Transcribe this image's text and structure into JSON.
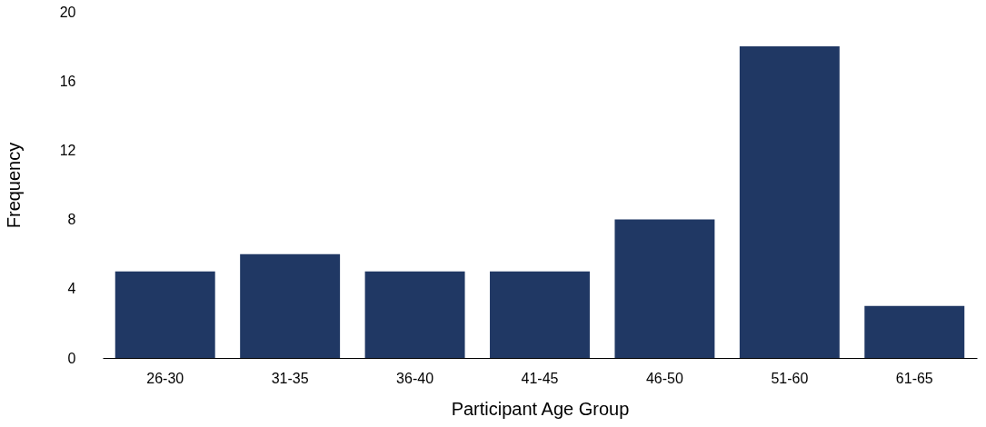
{
  "chart_data": {
    "type": "bar",
    "xlabel": "Participant Age Group",
    "ylabel": "Frequency",
    "categories": [
      "26-30",
      "31-35",
      "36-40",
      "41-45",
      "46-50",
      "51-60",
      "61-65"
    ],
    "values": [
      5,
      6,
      5,
      5,
      8,
      18,
      3
    ],
    "color": "#203864",
    "ylim": [
      0,
      20
    ],
    "yticks": [
      0,
      4,
      8,
      12,
      16,
      20
    ],
    "grid": false
  }
}
